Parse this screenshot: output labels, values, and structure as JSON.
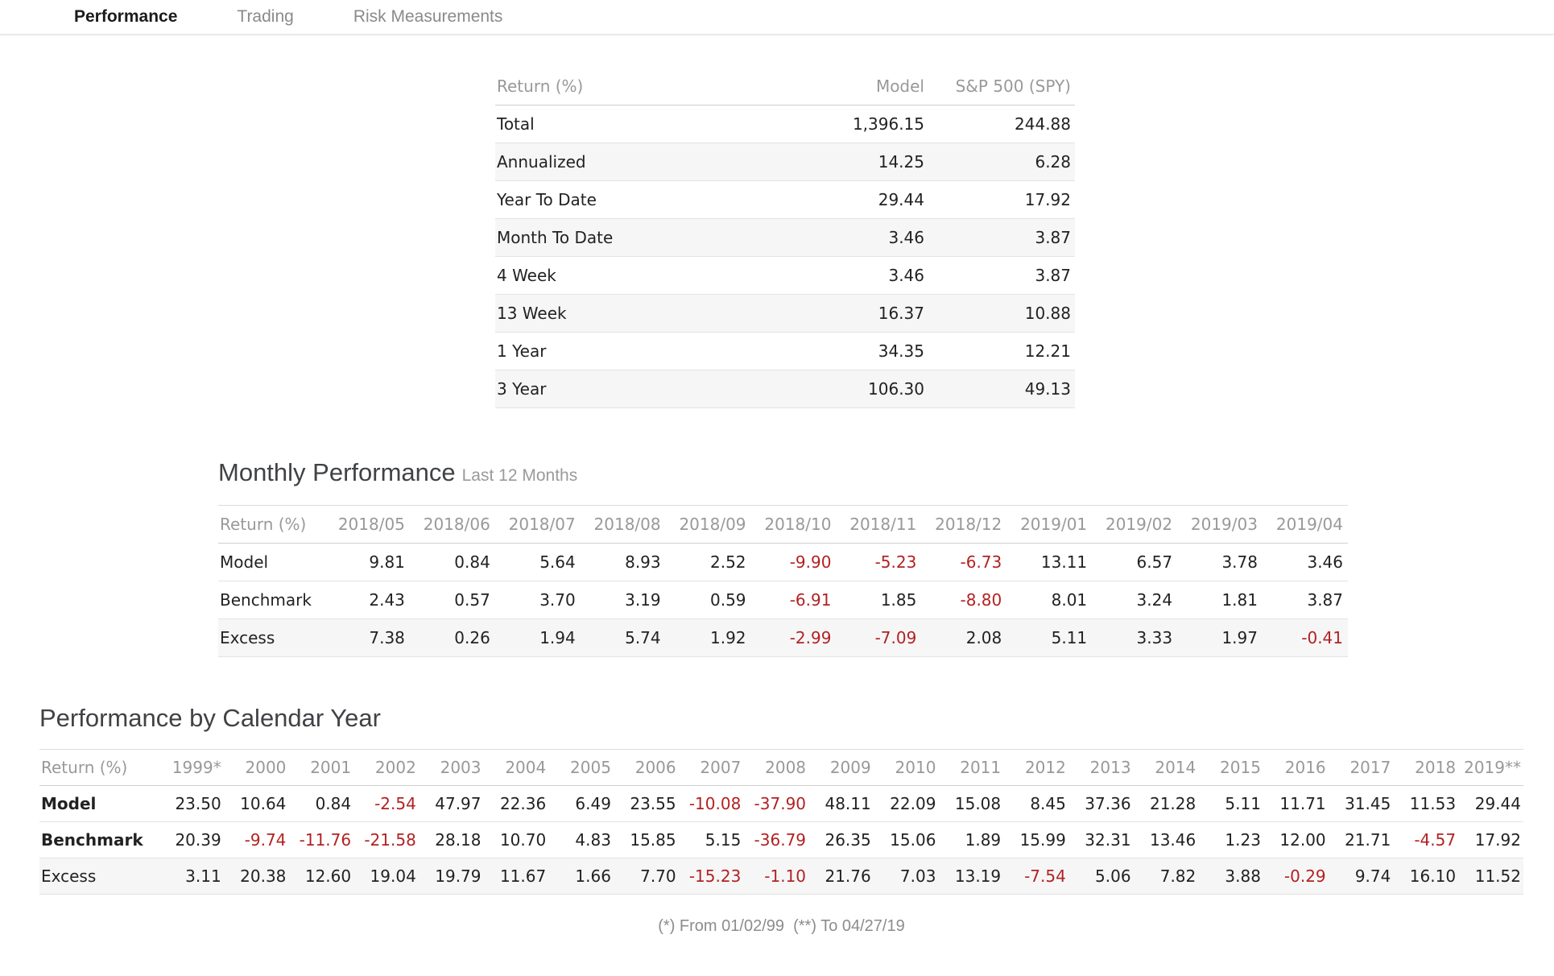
{
  "tabs": [
    {
      "label": "Performance",
      "active": true
    },
    {
      "label": "Trading",
      "active": false
    },
    {
      "label": "Risk Measurements",
      "active": false
    }
  ],
  "summary_table": {
    "header": [
      "Return (%)",
      "Model",
      "S&P 500 (SPY)"
    ],
    "rows": [
      {
        "label": "Total",
        "values": [
          "1,396.15",
          "244.88"
        ]
      },
      {
        "label": "Annualized",
        "values": [
          "14.25",
          "6.28"
        ]
      },
      {
        "label": "Year To Date",
        "values": [
          "29.44",
          "17.92"
        ]
      },
      {
        "label": "Month To Date",
        "values": [
          "3.46",
          "3.87"
        ]
      },
      {
        "label": "4 Week",
        "values": [
          "3.46",
          "3.87"
        ]
      },
      {
        "label": "13 Week",
        "values": [
          "16.37",
          "10.88"
        ]
      },
      {
        "label": "1 Year",
        "values": [
          "34.35",
          "12.21"
        ]
      },
      {
        "label": "3 Year",
        "values": [
          "106.30",
          "49.13"
        ]
      }
    ]
  },
  "monthly_section": {
    "title": "Monthly Performance",
    "subtitle": "Last 12 Months",
    "table": {
      "header": [
        "Return (%)",
        "2018/05",
        "2018/06",
        "2018/07",
        "2018/08",
        "2018/09",
        "2018/10",
        "2018/11",
        "2018/12",
        "2019/01",
        "2019/02",
        "2019/03",
        "2019/04"
      ],
      "rows": [
        {
          "label": "Model",
          "values": [
            "9.81",
            "0.84",
            "5.64",
            "8.93",
            "2.52",
            "-9.90",
            "-5.23",
            "-6.73",
            "13.11",
            "6.57",
            "3.78",
            "3.46"
          ]
        },
        {
          "label": "Benchmark",
          "values": [
            "2.43",
            "0.57",
            "3.70",
            "3.19",
            "0.59",
            "-6.91",
            "1.85",
            "-8.80",
            "8.01",
            "3.24",
            "1.81",
            "3.87"
          ]
        },
        {
          "label": "Excess",
          "values": [
            "7.38",
            "0.26",
            "1.94",
            "5.74",
            "1.92",
            "-2.99",
            "-7.09",
            "2.08",
            "5.11",
            "3.33",
            "1.97",
            "-0.41"
          ],
          "emphasis": true
        }
      ]
    }
  },
  "calendar_section": {
    "title": "Performance by Calendar Year",
    "table": {
      "header": [
        "Return (%)",
        "1999*",
        "2000",
        "2001",
        "2002",
        "2003",
        "2004",
        "2005",
        "2006",
        "2007",
        "2008",
        "2009",
        "2010",
        "2011",
        "2012",
        "2013",
        "2014",
        "2015",
        "2016",
        "2017",
        "2018",
        "2019**"
      ],
      "rows": [
        {
          "label": "Model",
          "bold_label": true,
          "values": [
            "23.50",
            "10.64",
            "0.84",
            "-2.54",
            "47.97",
            "22.36",
            "6.49",
            "23.55",
            "-10.08",
            "-37.90",
            "48.11",
            "22.09",
            "15.08",
            "8.45",
            "37.36",
            "21.28",
            "5.11",
            "11.71",
            "31.45",
            "11.53",
            "29.44"
          ]
        },
        {
          "label": "Benchmark",
          "bold_label": true,
          "values": [
            "20.39",
            "-9.74",
            "-11.76",
            "-21.58",
            "28.18",
            "10.70",
            "4.83",
            "15.85",
            "5.15",
            "-36.79",
            "26.35",
            "15.06",
            "1.89",
            "15.99",
            "32.31",
            "13.46",
            "1.23",
            "12.00",
            "21.71",
            "-4.57",
            "17.92"
          ]
        },
        {
          "label": "Excess",
          "emphasis": true,
          "values": [
            "3.11",
            "20.38",
            "12.60",
            "19.04",
            "19.79",
            "11.67",
            "1.66",
            "7.70",
            "-15.23",
            "-1.10",
            "21.76",
            "7.03",
            "13.19",
            "-7.54",
            "5.06",
            "7.82",
            "3.88",
            "-0.29",
            "9.74",
            "16.10",
            "11.52"
          ]
        }
      ]
    }
  },
  "footer_note": "(*) From 01/02/99  (**) To 04/27/19",
  "colors": {
    "negative_value": "#b22222",
    "active_tab_text": "#1b1b1b",
    "muted_text": "#999999",
    "shaded_row": "#f6f6f7"
  }
}
